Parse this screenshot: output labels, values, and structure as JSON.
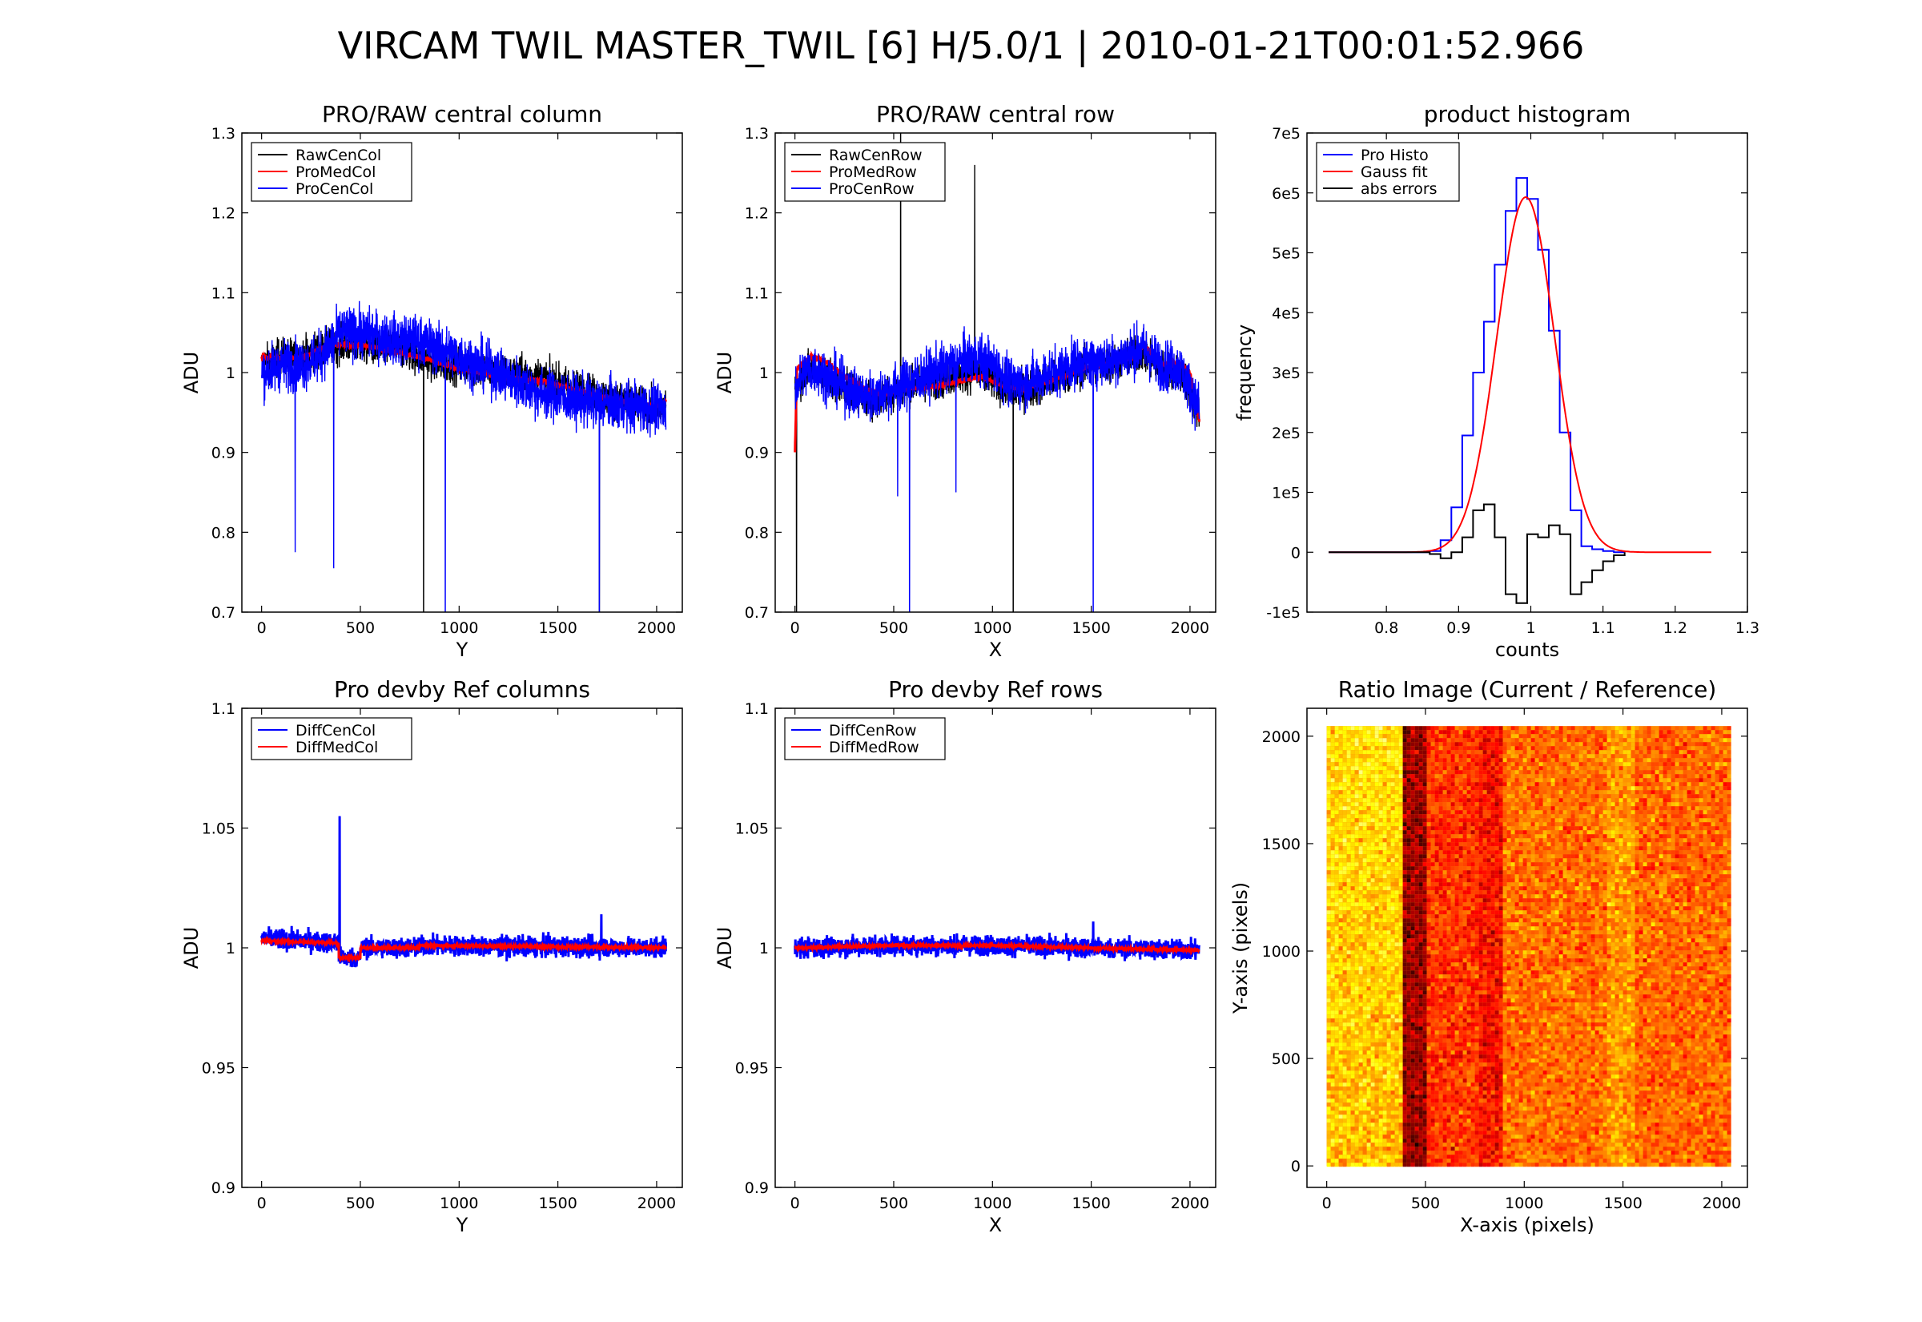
{
  "title": "VIRCAM TWIL MASTER_TWIL [6] H/5.0/1  |  2010-01-21T00:01:52.966",
  "chart_data": [
    {
      "type": "line",
      "title": "PRO/RAW central column",
      "xlabel": "Y",
      "ylabel": "ADU",
      "xlim": [
        -100,
        2130
      ],
      "ylim": [
        0.7,
        1.3
      ],
      "xticks": [
        "0",
        "500",
        "1000",
        "1500",
        "2000"
      ],
      "yticks": [
        "0.7",
        "0.8",
        "0.9",
        "1",
        "1.1",
        "1.2",
        "1.3"
      ],
      "legend": "top-left",
      "series": [
        {
          "name": "RawCenCol",
          "color": "#000000",
          "noise": 0.022,
          "x": [
            0,
            100,
            200,
            300,
            400,
            500,
            600,
            700,
            800,
            900,
            1000,
            1200,
            1400,
            1600,
            1800,
            2000,
            2047
          ],
          "values": [
            1.01,
            1.02,
            1.02,
            1.03,
            1.035,
            1.035,
            1.03,
            1.03,
            1.02,
            1.01,
            1.01,
            1.0,
            0.995,
            0.98,
            0.965,
            0.955,
            0.96
          ],
          "spikes": [
            [
              820,
              0.62
            ],
            [
              1710,
              0.62
            ]
          ]
        },
        {
          "name": "ProMedCol",
          "color": "#ff0000",
          "noise": 0.003,
          "x": [
            0,
            100,
            200,
            300,
            400,
            500,
            600,
            700,
            800,
            900,
            1000,
            1200,
            1400,
            1600,
            1800,
            2000,
            2047
          ],
          "values": [
            1.02,
            1.018,
            1.018,
            1.03,
            1.035,
            1.035,
            1.03,
            1.025,
            1.02,
            1.012,
            1.005,
            0.995,
            0.99,
            0.978,
            0.965,
            0.958,
            0.965
          ],
          "spikes": []
        },
        {
          "name": "ProCenCol",
          "color": "#0000ff",
          "noise": 0.03,
          "x": [
            0,
            100,
            200,
            300,
            400,
            500,
            600,
            700,
            800,
            900,
            1000,
            1200,
            1400,
            1600,
            1800,
            2000,
            2047
          ],
          "values": [
            1.0,
            1.01,
            1.01,
            1.02,
            1.05,
            1.05,
            1.045,
            1.04,
            1.04,
            1.03,
            1.02,
            1.0,
            0.975,
            0.965,
            0.96,
            0.955,
            0.95
          ],
          "spikes": [
            [
              170,
              0.775
            ],
            [
              365,
              0.755
            ],
            [
              930,
              0.62
            ],
            [
              1710,
              0.62
            ]
          ]
        }
      ]
    },
    {
      "type": "line",
      "title": "PRO/RAW central row",
      "xlabel": "X",
      "ylabel": "ADU",
      "xlim": [
        -100,
        2130
      ],
      "ylim": [
        0.7,
        1.3
      ],
      "xticks": [
        "0",
        "500",
        "1000",
        "1500",
        "2000"
      ],
      "yticks": [
        "0.7",
        "0.8",
        "0.9",
        "1",
        "1.1",
        "1.2",
        "1.3"
      ],
      "legend": "top-left",
      "series": [
        {
          "name": "RawCenRow",
          "color": "#000000",
          "noise": 0.022,
          "x": [
            0,
            50,
            100,
            200,
            300,
            400,
            500,
            600,
            700,
            800,
            900,
            1000,
            1100,
            1200,
            1300,
            1400,
            1500,
            1600,
            1700,
            1760,
            1850,
            1950,
            2047
          ],
          "values": [
            0.98,
            1.0,
            1.005,
            0.99,
            0.975,
            0.965,
            0.975,
            0.985,
            0.99,
            0.995,
            1.0,
            0.99,
            0.975,
            0.98,
            0.99,
            1.0,
            1.01,
            1.01,
            1.02,
            1.025,
            1.005,
            1.0,
            0.95
          ],
          "spikes": [
            [
              8,
              0.62
            ],
            [
              535,
              1.35
            ],
            [
              910,
              1.26
            ],
            [
              1105,
              0.62
            ]
          ]
        },
        {
          "name": "ProMedRow",
          "color": "#ff0000",
          "noise": 0.003,
          "x": [
            0,
            10,
            80,
            150,
            250,
            350,
            450,
            550,
            700,
            850,
            950,
            1050,
            1150,
            1300,
            1450,
            1600,
            1700,
            1770,
            1850,
            1950,
            2000,
            2047
          ],
          "values": [
            0.9,
            1.005,
            1.02,
            1.015,
            0.995,
            0.98,
            0.973,
            0.98,
            0.982,
            0.99,
            0.995,
            0.983,
            0.98,
            0.99,
            1.005,
            1.012,
            1.018,
            1.035,
            1.01,
            1.012,
            1.0,
            0.94
          ],
          "spikes": []
        },
        {
          "name": "ProCenRow",
          "color": "#0000ff",
          "noise": 0.03,
          "x": [
            0,
            50,
            100,
            200,
            300,
            400,
            500,
            600,
            700,
            800,
            900,
            1000,
            1100,
            1200,
            1300,
            1400,
            1500,
            1600,
            1700,
            1760,
            1850,
            1950,
            2047
          ],
          "values": [
            0.98,
            1.0,
            1.005,
            0.99,
            0.975,
            0.97,
            0.98,
            0.99,
            1.0,
            1.01,
            1.02,
            1.01,
            0.985,
            0.99,
            1.0,
            1.01,
            1.015,
            1.015,
            1.025,
            1.03,
            1.01,
            1.005,
            0.955
          ],
          "spikes": [
            [
              520,
              0.845
            ],
            [
              580,
              0.62
            ],
            [
              815,
              0.85
            ],
            [
              1510,
              0.62
            ]
          ]
        }
      ]
    },
    {
      "type": "line",
      "title": "product histogram",
      "xlabel": "counts",
      "ylabel": "frequency",
      "xlim": [
        0.69,
        1.3
      ],
      "ylim": [
        -100000,
        700000
      ],
      "xticks": [
        "0.8",
        "0.9",
        "1",
        "1.1",
        "1.2",
        "1.3"
      ],
      "xtick_values": [
        0.8,
        0.9,
        1.0,
        1.1,
        1.2,
        1.3
      ],
      "yticks": [
        "-1e5",
        "0",
        "1e5",
        "2e5",
        "3e5",
        "4e5",
        "5e5",
        "6e5",
        "7e5"
      ],
      "ytick_values": [
        -100000,
        0,
        100000,
        200000,
        300000,
        400000,
        500000,
        600000,
        700000
      ],
      "legend": "top-left",
      "series": [
        {
          "name": "Pro Histo",
          "color": "#0000ff",
          "step": true,
          "x": [
            0.72,
            0.86,
            0.875,
            0.89,
            0.905,
            0.92,
            0.935,
            0.95,
            0.965,
            0.98,
            0.995,
            1.01,
            1.025,
            1.04,
            1.055,
            1.07,
            1.085,
            1.1,
            1.115,
            1.13
          ],
          "values": [
            0,
            2000,
            20000,
            75000,
            195000,
            300000,
            385000,
            480000,
            570000,
            625000,
            590000,
            505000,
            370000,
            200000,
            70000,
            10000,
            5000,
            2000,
            0,
            0
          ]
        },
        {
          "name": "Gauss fit",
          "color": "#ff0000",
          "gauss": {
            "amp": 593000,
            "mu": 0.993,
            "sigma": 0.04,
            "x0": 0.72,
            "x1": 1.25
          }
        },
        {
          "name": "abs errors",
          "color": "#000000",
          "step": true,
          "x": [
            0.72,
            0.86,
            0.875,
            0.89,
            0.905,
            0.92,
            0.935,
            0.95,
            0.965,
            0.98,
            0.995,
            1.01,
            1.025,
            1.04,
            1.055,
            1.07,
            1.085,
            1.1,
            1.115,
            1.13
          ],
          "values": [
            0,
            -3000,
            -10000,
            0,
            25000,
            70000,
            80000,
            25000,
            -70000,
            -85000,
            30000,
            25000,
            45000,
            30000,
            -70000,
            -50000,
            -30000,
            -15000,
            -5000,
            0
          ]
        }
      ]
    },
    {
      "type": "line",
      "title": "Pro devby Ref columns",
      "xlabel": "Y",
      "ylabel": "ADU",
      "xlim": [
        -100,
        2130
      ],
      "ylim": [
        0.9,
        1.1
      ],
      "xticks": [
        "0",
        "500",
        "1000",
        "1500",
        "2000"
      ],
      "yticks": [
        "0.9",
        "0.95",
        "1",
        "1.05",
        "1.1"
      ],
      "legend": "top-left",
      "series": [
        {
          "name": "DiffCenCol",
          "color": "#0000ff",
          "noise": 0.004,
          "x": [
            0,
            390,
            391,
            500,
            501,
            800,
            801,
            2047
          ],
          "values": [
            1.004,
            1.002,
            0.996,
            0.996,
            1.0,
            1.0,
            1.001,
            1.0
          ],
          "spikes": [
            [
              395,
              1.055
            ],
            [
              1720,
              1.014
            ]
          ]
        },
        {
          "name": "DiffMedCol",
          "color": "#ff0000",
          "noise": 0.0005,
          "x": [
            0,
            390,
            391,
            500,
            501,
            800,
            801,
            2047
          ],
          "values": [
            1.003,
            1.002,
            0.996,
            0.996,
            1.0,
            1.0,
            1.001,
            1.0
          ],
          "spikes": []
        }
      ]
    },
    {
      "type": "line",
      "title": "Pro devby Ref rows",
      "xlabel": "X",
      "ylabel": "ADU",
      "xlim": [
        -100,
        2130
      ],
      "ylim": [
        0.9,
        1.1
      ],
      "xticks": [
        "0",
        "500",
        "1000",
        "1500",
        "2000"
      ],
      "yticks": [
        "0.9",
        "0.95",
        "1",
        "1.05",
        "1.1"
      ],
      "legend": "top-left",
      "series": [
        {
          "name": "DiffCenRow",
          "color": "#0000ff",
          "noise": 0.004,
          "x": [
            0,
            500,
            1000,
            1500,
            2047
          ],
          "values": [
            1.0,
            1.001,
            1.001,
            1.0,
            0.999
          ],
          "spikes": [
            [
              1510,
              1.011
            ]
          ]
        },
        {
          "name": "DiffMedRow",
          "color": "#ff0000",
          "noise": 0.0006,
          "x": [
            0,
            500,
            1000,
            1500,
            2047
          ],
          "values": [
            1.0,
            1.001,
            1.001,
            1.0,
            0.999
          ],
          "spikes": []
        }
      ]
    },
    {
      "type": "heatmap",
      "title": "Ratio Image (Current / Reference)",
      "xlabel": "X-axis (pixels)",
      "ylabel": "Y-axis (pixels)",
      "xlim": [
        -100,
        2130
      ],
      "ylim": [
        -100,
        2130
      ],
      "image_extent": [
        0,
        2047,
        0,
        2047
      ],
      "xticks": [
        "0",
        "500",
        "1000",
        "1500",
        "2000"
      ],
      "yticks": [
        "0",
        "500",
        "1000",
        "1500",
        "2000"
      ],
      "colormap": "hot",
      "column_bands": [
        {
          "x": [
            0,
            370
          ],
          "level": 0.66
        },
        {
          "x": [
            370,
            500
          ],
          "level": 0.22
        },
        {
          "x": [
            500,
            760
          ],
          "level": 0.44
        },
        {
          "x": [
            760,
            880
          ],
          "level": 0.38
        },
        {
          "x": [
            880,
            1400
          ],
          "level": 0.53
        },
        {
          "x": [
            1400,
            1560
          ],
          "level": 0.6
        },
        {
          "x": [
            1560,
            2047
          ],
          "level": 0.52
        }
      ]
    }
  ]
}
